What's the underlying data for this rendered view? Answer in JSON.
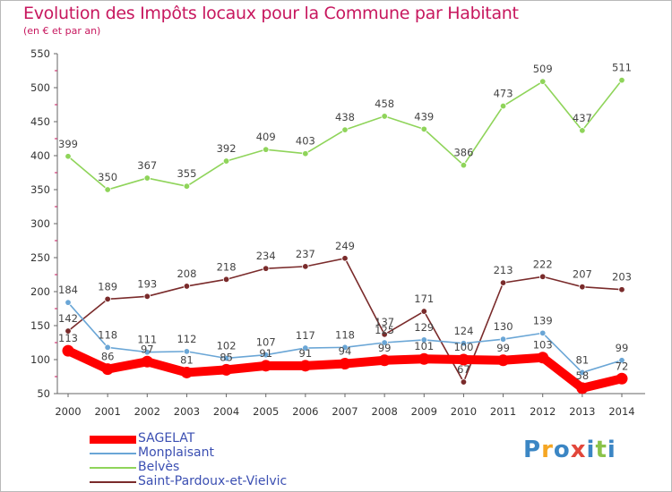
{
  "chart_data": {
    "type": "line",
    "title": "Evolution des Impôts locaux pour la Commune par Habitant",
    "subtitle": "(en € et par an)",
    "x": [
      "2000",
      "2001",
      "2002",
      "2003",
      "2004",
      "2005",
      "2006",
      "2007",
      "2008",
      "2009",
      "2010",
      "2011",
      "2012",
      "2013",
      "2014"
    ],
    "ylim": [
      50,
      550
    ],
    "yticks": [
      50,
      100,
      150,
      200,
      250,
      300,
      350,
      400,
      450,
      500,
      550
    ],
    "grid": false,
    "legend_position": "bottom-left",
    "series": [
      {
        "name": "SAGELAT",
        "color": "#ff0000",
        "values": [
          113,
          86,
          97,
          81,
          85,
          91,
          91,
          94,
          99,
          101,
          100,
          99,
          103,
          58,
          72
        ]
      },
      {
        "name": "Monplaisant",
        "color": "#6aa6d6",
        "values": [
          184,
          118,
          111,
          112,
          102,
          107,
          117,
          118,
          125,
          129,
          124,
          130,
          139,
          81,
          99
        ]
      },
      {
        "name": "Belvès",
        "color": "#8fd45a",
        "values": [
          399,
          350,
          367,
          355,
          392,
          409,
          403,
          438,
          458,
          439,
          386,
          473,
          509,
          437,
          511
        ]
      },
      {
        "name": "Saint-Pardoux-et-Vielvic",
        "color": "#7a2b2b",
        "values": [
          142,
          189,
          193,
          208,
          218,
          234,
          237,
          249,
          137,
          171,
          67,
          213,
          222,
          207,
          203
        ]
      }
    ]
  },
  "logo": {
    "letters": [
      "P",
      "r",
      "o",
      "x",
      "i",
      "t",
      "i"
    ],
    "colors": [
      "#3b86c4",
      "#f5a623",
      "#3b86c4",
      "#e2473b",
      "#3b86c4",
      "#8bc34a",
      "#3b86c4"
    ]
  }
}
